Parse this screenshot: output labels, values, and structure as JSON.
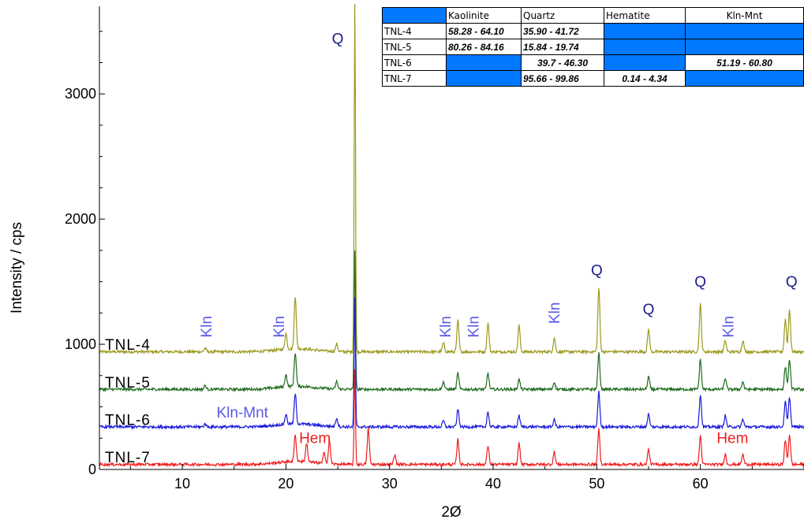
{
  "chart_data": {
    "type": "line",
    "xlabel": "2Ø",
    "ylabel": "Intensity / cps",
    "xlim": [
      2,
      70
    ],
    "ylim": [
      0,
      3700
    ],
    "xticks": [
      10,
      20,
      30,
      40,
      50,
      60
    ],
    "yticks": [
      0,
      1000,
      2000,
      3000
    ],
    "grid": false,
    "legend": "none",
    "series": [
      {
        "name": "TNL-4",
        "color": "#9b9a1e",
        "baseline": 940,
        "label_y": 1000,
        "peaks": [
          [
            12.2,
            30
          ],
          [
            20.0,
            130
          ],
          [
            20.9,
            420
          ],
          [
            24.9,
            60
          ],
          [
            26.65,
            2780
          ],
          [
            35.2,
            70
          ],
          [
            36.6,
            250
          ],
          [
            39.5,
            230
          ],
          [
            42.5,
            210
          ],
          [
            45.9,
            110
          ],
          [
            50.2,
            510
          ],
          [
            55.0,
            180
          ],
          [
            60.0,
            380
          ],
          [
            62.4,
            90
          ],
          [
            64.1,
            90
          ],
          [
            68.2,
            260
          ],
          [
            68.6,
            340
          ]
        ]
      },
      {
        "name": "TNL-5",
        "color": "#1e6b1e",
        "baseline": 640,
        "label_y": 700,
        "peaks": [
          [
            12.2,
            30
          ],
          [
            20.0,
            100
          ],
          [
            20.9,
            270
          ],
          [
            24.9,
            60
          ],
          [
            26.65,
            1100
          ],
          [
            35.2,
            60
          ],
          [
            36.6,
            130
          ],
          [
            39.5,
            130
          ],
          [
            42.5,
            80
          ],
          [
            45.9,
            60
          ],
          [
            50.2,
            290
          ],
          [
            55.0,
            100
          ],
          [
            60.0,
            240
          ],
          [
            62.4,
            90
          ],
          [
            64.1,
            60
          ],
          [
            68.2,
            180
          ],
          [
            68.6,
            240
          ]
        ]
      },
      {
        "name": "TNL-6",
        "color": "#1a1adc",
        "baseline": 340,
        "label_y": 400,
        "peaks": [
          [
            12.2,
            25
          ],
          [
            20.0,
            80
          ],
          [
            20.9,
            240
          ],
          [
            24.9,
            70
          ],
          [
            26.65,
            1030
          ],
          [
            35.2,
            50
          ],
          [
            36.6,
            140
          ],
          [
            39.5,
            120
          ],
          [
            42.5,
            90
          ],
          [
            45.9,
            60
          ],
          [
            50.2,
            280
          ],
          [
            55.0,
            100
          ],
          [
            60.0,
            260
          ],
          [
            62.4,
            90
          ],
          [
            64.1,
            60
          ],
          [
            68.2,
            200
          ],
          [
            68.6,
            240
          ]
        ]
      },
      {
        "name": "TNL-7",
        "color": "#ee1e1e",
        "baseline": 40,
        "label_y": 100,
        "peaks": [
          [
            20.9,
            210
          ],
          [
            22.0,
            150
          ],
          [
            23.7,
            90
          ],
          [
            24.2,
            180
          ],
          [
            26.65,
            760
          ],
          [
            27.95,
            290
          ],
          [
            30.5,
            80
          ],
          [
            36.6,
            200
          ],
          [
            39.5,
            150
          ],
          [
            42.5,
            170
          ],
          [
            45.9,
            100
          ],
          [
            50.2,
            280
          ],
          [
            55.0,
            120
          ],
          [
            60.0,
            230
          ],
          [
            62.4,
            80
          ],
          [
            64.1,
            80
          ],
          [
            68.2,
            190
          ],
          [
            68.6,
            240
          ]
        ]
      }
    ],
    "annotations": [
      {
        "text": "Q",
        "x": 25.0,
        "y": 3400,
        "color": "#1a1a8c"
      },
      {
        "text": "Q",
        "x": 50.0,
        "y": 1550,
        "color": "#1a1a8c"
      },
      {
        "text": "Q",
        "x": 55.0,
        "y": 1240,
        "color": "#1a1a8c"
      },
      {
        "text": "Q",
        "x": 60.0,
        "y": 1460,
        "color": "#1a1a8c"
      },
      {
        "text": "Q",
        "x": 68.8,
        "y": 1460,
        "color": "#1a1a8c"
      },
      {
        "text": "Kln",
        "x": 12.8,
        "y": 1140,
        "color": "#5a5ae6",
        "rotate": true
      },
      {
        "text": "Kln",
        "x": 19.8,
        "y": 1140,
        "color": "#5a5ae6",
        "rotate": true
      },
      {
        "text": "Kln",
        "x": 35.9,
        "y": 1140,
        "color": "#5a5ae6",
        "rotate": true
      },
      {
        "text": "Kln",
        "x": 38.6,
        "y": 1140,
        "color": "#5a5ae6",
        "rotate": true
      },
      {
        "text": "Kln",
        "x": 46.4,
        "y": 1250,
        "color": "#5a5ae6",
        "rotate": true
      },
      {
        "text": "Kln",
        "x": 63.2,
        "y": 1140,
        "color": "#5a5ae6",
        "rotate": true
      },
      {
        "text": "Kln-Mnt",
        "x": 15.8,
        "y": 415,
        "color": "#5a5ae6"
      },
      {
        "text": "Hem",
        "x": 22.8,
        "y": 210,
        "color": "#ee1e1e"
      },
      {
        "text": "Hem",
        "x": 63.1,
        "y": 210,
        "color": "#ee1e1e"
      }
    ],
    "table": {
      "headers": [
        "",
        "Kaolinite",
        "Quartz",
        "Hematite",
        "Kln-Mnt"
      ],
      "rows": [
        [
          "TNL-4",
          "58.28 - 64.10",
          "35.90 - 41.72",
          "",
          ""
        ],
        [
          "TNL-5",
          "80.26 - 84.16",
          "15.84 - 19.74",
          "",
          ""
        ],
        [
          "TNL-6",
          "",
          "39.7 - 46.30",
          "",
          "51.19 - 60.80"
        ],
        [
          "TNL-7",
          "",
          "95.66 - 99.86",
          "0.14 - 4.34",
          ""
        ]
      ],
      "blank_color": "#0078ff"
    }
  }
}
